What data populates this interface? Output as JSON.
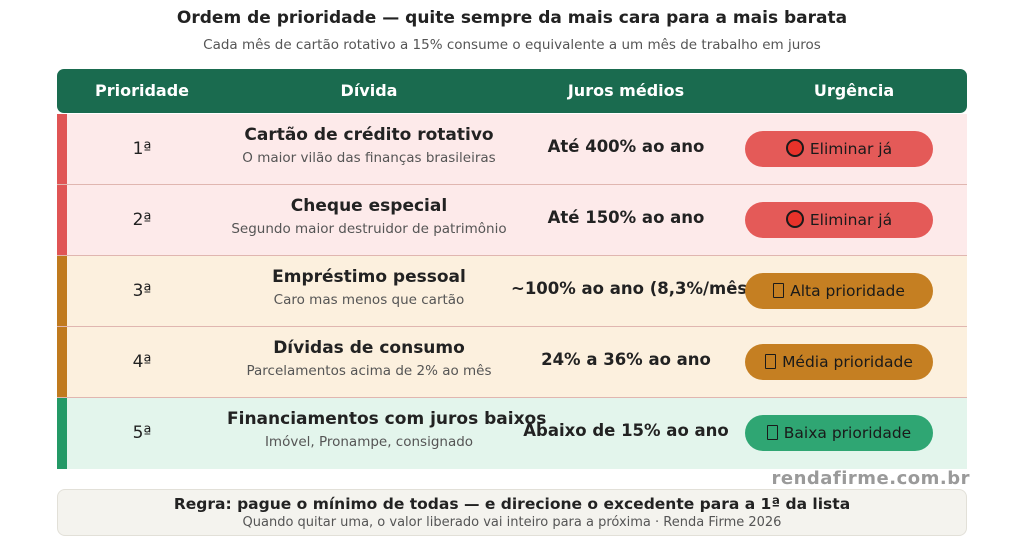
{
  "header": {
    "title": "Ordem de prioridade — quite sempre da mais cara para a mais barata",
    "subtitle": "Cada mês de cartão rotativo a 15% consume o equivalente a um mês de trabalho em juros"
  },
  "table": {
    "columns": [
      "Prioridade",
      "Dívida",
      "Juros médios",
      "Urgência"
    ],
    "rows": [
      {
        "priority": "1ª",
        "name": "Cartão de crédito rotativo",
        "description": "O maior vilão das finanças brasileiras",
        "interest": "Até 400% ao ano",
        "urgency": "Eliminar já",
        "urgency_icon": "red-circle-icon",
        "bg": "#fdeaea",
        "bar": "#e05555",
        "badge_bg": "#e45a58"
      },
      {
        "priority": "2ª",
        "name": "Cheque especial",
        "description": "Segundo maior destruidor de patrimônio",
        "interest": "Até 150% ao ano",
        "urgency": "Eliminar já",
        "urgency_icon": "red-circle-icon",
        "bg": "#fdeaea",
        "bar": "#e05555",
        "badge_bg": "#e45a58"
      },
      {
        "priority": "3ª",
        "name": "Empréstimo pessoal",
        "description": "Caro mas menos que cartão",
        "interest": "~100% ao ano (8,3%/mês)",
        "urgency": "Alta prioridade",
        "urgency_icon": "missing-glyph-icon",
        "bg": "#fcf0de",
        "bar": "#c07a1e",
        "badge_bg": "#c57f22"
      },
      {
        "priority": "4ª",
        "name": "Dívidas de consumo",
        "description": "Parcelamentos acima de 2% ao mês",
        "interest": "24% a 36% ao ano",
        "urgency": "Média prioridade",
        "urgency_icon": "missing-glyph-icon",
        "bg": "#fcf0de",
        "bar": "#c07a1e",
        "badge_bg": "#c57f22"
      },
      {
        "priority": "5ª",
        "name": "Financiamentos com juros baixos",
        "description": "Imóvel, Pronampe, consignado",
        "interest": "Abaixo de 15% ao ano",
        "urgency": "Baixa prioridade",
        "urgency_icon": "missing-glyph-icon",
        "bg": "#e3f5ec",
        "bar": "#239966",
        "badge_bg": "#2fa673"
      }
    ]
  },
  "watermark": "rendafirme.com.br",
  "footer": {
    "rule": "Regra: pague o mínimo de todas — e direcione o excedente para a 1ª da lista",
    "note": "Quando quitar uma, o valor liberado vai inteiro para a próxima · Renda Firme 2026"
  },
  "colors": {
    "header_bg": "#1a6b4f",
    "header_text": "#ffffff"
  }
}
